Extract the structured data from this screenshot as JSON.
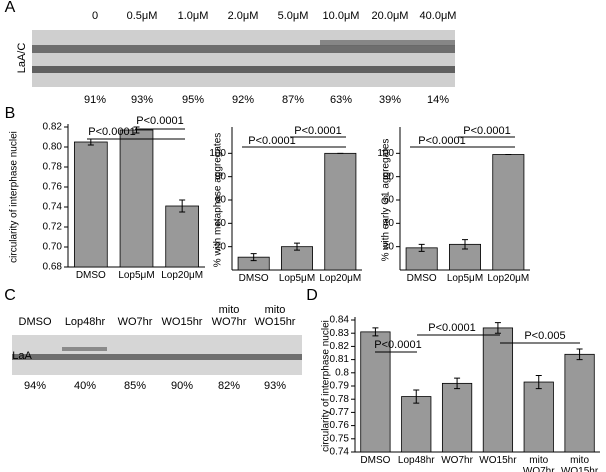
{
  "panel_labels": [
    "A",
    "B",
    "C",
    "D"
  ],
  "blot_a": {
    "lanes": [
      "0",
      "0.5μM",
      "1.0μM",
      "2.0μM",
      "5.0μM",
      "10.0μM",
      "20.0μM",
      "40.0μM"
    ],
    "row_label": "LaA/C",
    "percentages": [
      "91%",
      "93%",
      "95%",
      "92%",
      "87%",
      "63%",
      "39%",
      "14%"
    ]
  },
  "blot_c": {
    "lanes": [
      "DMSO",
      "Lop48hr",
      "WO7hr",
      "WO15hr",
      "mito WO7hr",
      "mito WO15hr"
    ],
    "row_label": "LaA",
    "percentages": [
      "94%",
      "40%",
      "85%",
      "90%",
      "82%",
      "93%"
    ]
  },
  "chart_data": [
    {
      "type": "bar",
      "y_label": "circularity of interphase nuclei",
      "categories": [
        "DMSO",
        "Lop5μM",
        "Lop20μM"
      ],
      "values": [
        0.805,
        0.817,
        0.741
      ],
      "errors": [
        0.003,
        0.003,
        0.006
      ],
      "color": "#999999",
      "ylim": [
        0.68,
        0.82
      ],
      "yticks": [
        0.68,
        {
          "value": 0.7,
          "label": "0.70"
        },
        0.72,
        0.74,
        0.76,
        0.78,
        {
          "value": 0.8,
          "label": "0.80"
        },
        0.82
      ],
      "annotations": [
        "P<0.0001",
        "P<0.0001"
      ]
    },
    {
      "type": "bar",
      "y_label": "% with metaphase aggregates",
      "categories": [
        "DMSO",
        "Lop5μM",
        "Lop20μM"
      ],
      "values": [
        11,
        20,
        100
      ],
      "errors": [
        3,
        3,
        0
      ],
      "color": "#999999",
      "ylim": [
        0,
        120
      ],
      "yticks": [
        20,
        40,
        60,
        80,
        100
      ],
      "annotations": [
        "P<0.0001",
        "P<0.0001"
      ]
    },
    {
      "type": "bar",
      "y_label": "% with early G1 aggregates",
      "categories": [
        "DMSO",
        "Lop5μM",
        "Lop20μM"
      ],
      "values": [
        19,
        22,
        99
      ],
      "errors": [
        3,
        4,
        0
      ],
      "color": "#999999",
      "ylim": [
        0,
        120
      ],
      "yticks": [
        20,
        40,
        60,
        80,
        100
      ],
      "annotations": [
        "P<0.0001",
        "P<0.0001"
      ]
    },
    {
      "type": "bar",
      "y_label": "circularity of interphase nuclei",
      "categories": [
        "DMSO",
        "Lop48hr",
        "WO7hr",
        "WO15hr",
        "mito WO7hr",
        "mito WO15hr"
      ],
      "values": [
        0.831,
        0.782,
        0.792,
        0.834,
        0.793,
        0.814
      ],
      "errors": [
        0.003,
        0.005,
        0.004,
        0.004,
        0.005,
        0.004
      ],
      "color": "#999999",
      "ylim": [
        0.74,
        0.84
      ],
      "yticks": [
        0.74,
        0.75,
        0.76,
        0.77,
        0.78,
        0.79,
        0.8,
        0.81,
        0.82,
        0.83,
        0.84
      ],
      "annotations": [
        "P<0.0001",
        "P<0.0001",
        "P<0.005"
      ]
    }
  ]
}
